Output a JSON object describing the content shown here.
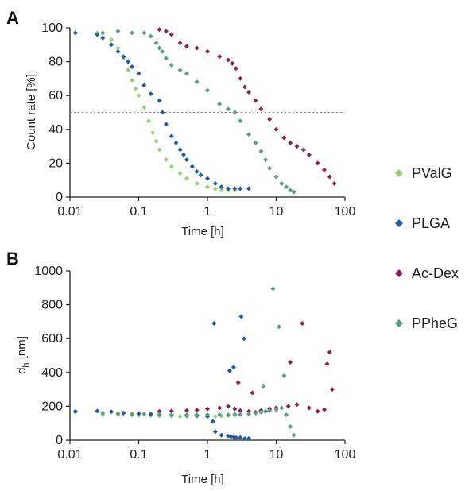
{
  "colors": {
    "PValG": "#99cf7c",
    "PLGA": "#1f5c9e",
    "Ac-Dex": "#8f1d58",
    "PPheG": "#5e9b89"
  },
  "legend": {
    "items": [
      {
        "label": "PValG",
        "color": "#99cf7c",
        "icon": "diamond-marker-icon"
      },
      {
        "label": "PLGA",
        "color": "#1f5c9e",
        "icon": "diamond-marker-icon"
      },
      {
        "label": "Ac-Dex",
        "color": "#8f1d58",
        "icon": "diamond-marker-icon"
      },
      {
        "label": "PPheG",
        "color": "#5e9b89",
        "icon": "diamond-marker-icon"
      }
    ]
  },
  "chart_data": [
    {
      "panel": "A",
      "type": "scatter",
      "xscale": "log",
      "xlim": [
        0.01,
        100
      ],
      "ylim": [
        0,
        100
      ],
      "xticks": [
        "0.01",
        "0.1",
        "1",
        "10",
        "100"
      ],
      "yticks": [
        "0",
        "20",
        "40",
        "60",
        "80",
        "100"
      ],
      "xlabel": "Time [h]",
      "ylabel": "Count rate [%]",
      "reference_line": {
        "y": 50,
        "style": "dotted"
      },
      "series": [
        {
          "name": "PValG",
          "x": [
            0.012,
            0.025,
            0.04,
            0.05,
            0.06,
            0.07,
            0.08,
            0.09,
            0.1,
            0.12,
            0.14,
            0.16,
            0.18,
            0.2,
            0.25,
            0.3,
            0.4,
            0.5,
            0.7,
            1.0,
            1.3,
            1.6,
            2.0,
            2.5
          ],
          "y": [
            97,
            97,
            93,
            88,
            82,
            75,
            69,
            64,
            60,
            53,
            45,
            38,
            33,
            28,
            22,
            18,
            14,
            11,
            8,
            6,
            5,
            4,
            4,
            4
          ]
        },
        {
          "name": "PLGA",
          "x": [
            0.012,
            0.025,
            0.03,
            0.04,
            0.05,
            0.06,
            0.07,
            0.08,
            0.1,
            0.12,
            0.15,
            0.2,
            0.22,
            0.25,
            0.3,
            0.35,
            0.4,
            0.45,
            0.5,
            0.6,
            0.7,
            0.8,
            1.0,
            1.3,
            1.6,
            2.0,
            2.5,
            3.0,
            4.0
          ],
          "y": [
            97,
            96,
            94,
            90,
            86,
            83,
            80,
            77,
            73,
            66,
            61,
            57,
            50,
            43,
            36,
            32,
            28,
            25,
            22,
            18,
            15,
            13,
            11,
            8,
            6,
            5,
            5,
            5,
            5
          ]
        },
        {
          "name": "Ac-Dex",
          "x": [
            0.2,
            0.25,
            0.3,
            0.4,
            0.5,
            0.7,
            1.0,
            1.5,
            2.0,
            2.3,
            2.6,
            3.0,
            3.5,
            4.0,
            5.0,
            6.0,
            8.0,
            10.0,
            13.0,
            16.0,
            20.0,
            25.0,
            30.0,
            40.0,
            50.0,
            60.0,
            70.0
          ],
          "y": [
            99,
            98,
            96,
            91,
            89,
            88,
            86,
            83,
            81,
            79,
            76,
            70,
            65,
            62,
            57,
            52,
            46,
            40,
            35,
            32,
            30,
            28,
            25,
            20,
            16,
            12,
            8
          ]
        },
        {
          "name": "PPheG",
          "x": [
            0.03,
            0.05,
            0.08,
            0.12,
            0.15,
            0.18,
            0.2,
            0.22,
            0.25,
            0.3,
            0.4,
            0.5,
            0.7,
            1.0,
            1.5,
            2.0,
            2.5,
            3.0,
            4.0,
            5.0,
            6.0,
            7.0,
            8.0,
            10.0,
            12.0,
            14.0,
            16.0,
            18.0
          ],
          "y": [
            97,
            98,
            97,
            97,
            95,
            91,
            88,
            86,
            82,
            78,
            75,
            73,
            68,
            63,
            55,
            52,
            50,
            45,
            37,
            32,
            27,
            22,
            17,
            12,
            8,
            6,
            4,
            3
          ]
        }
      ]
    },
    {
      "panel": "B",
      "type": "scatter",
      "xscale": "log",
      "xlim": [
        0.01,
        100
      ],
      "ylim": [
        0,
        1000
      ],
      "xticks": [
        "0.01",
        "0.1",
        "1",
        "10",
        "100"
      ],
      "yticks": [
        "0",
        "200",
        "400",
        "600",
        "800",
        "1000"
      ],
      "xlabel": "Time [h]",
      "ylabel_main": "d",
      "ylabel_sub": "h",
      "ylabel_unit": " [nm]",
      "series": [
        {
          "name": "PValG",
          "x": [
            0.012,
            0.03,
            0.05,
            0.08,
            0.1,
            0.15,
            0.2,
            0.3,
            0.4,
            0.5,
            0.7,
            1.0,
            1.3,
            1.6,
            2.0,
            2.5
          ],
          "y": [
            165,
            150,
            150,
            148,
            147,
            145,
            143,
            142,
            140,
            140,
            140,
            141,
            140,
            142,
            145,
            155
          ]
        },
        {
          "name": "PLGA",
          "x": [
            0.012,
            0.025,
            0.04,
            0.06,
            0.1,
            0.15,
            0.2,
            0.3,
            0.5,
            0.7,
            1.0,
            1.2,
            1.3,
            1.6,
            2.0,
            2.2,
            2.4,
            2.6,
            3.0,
            3.5,
            4.0,
            1.25,
            2.1,
            2.4,
            3.1,
            3.4
          ],
          "y": [
            170,
            172,
            168,
            160,
            158,
            155,
            152,
            150,
            148,
            146,
            140,
            110,
            50,
            30,
            25,
            20,
            20,
            15,
            15,
            10,
            10,
            690,
            410,
            430,
            730,
            600
          ]
        },
        {
          "name": "Ac-Dex",
          "x": [
            0.2,
            0.3,
            0.5,
            0.7,
            1.0,
            1.5,
            2.0,
            2.5,
            3.0,
            4.0,
            5.0,
            6.0,
            8.0,
            10.0,
            15.0,
            20.0,
            30.0,
            40.0,
            50.0,
            55.0,
            60.0,
            65.0,
            2.8,
            4.5,
            16.0,
            24.0
          ],
          "y": [
            170,
            172,
            175,
            178,
            185,
            190,
            200,
            185,
            175,
            170,
            165,
            175,
            185,
            190,
            200,
            210,
            190,
            170,
            180,
            450,
            520,
            300,
            340,
            280,
            460,
            690
          ]
        },
        {
          "name": "PPheG",
          "x": [
            0.03,
            0.05,
            0.08,
            0.12,
            0.2,
            0.3,
            0.5,
            0.7,
            1.0,
            1.5,
            2.0,
            2.5,
            3.0,
            4.0,
            5.0,
            6.0,
            7.0,
            8.0,
            10.0,
            12.0,
            14.0,
            16.0,
            18.0,
            9.0,
            11.0,
            13.0,
            6.5
          ],
          "y": [
            160,
            158,
            155,
            155,
            152,
            150,
            150,
            150,
            150,
            150,
            150,
            150,
            152,
            155,
            160,
            165,
            170,
            175,
            180,
            190,
            150,
            80,
            30,
            895,
            670,
            380,
            320
          ]
        }
      ]
    }
  ]
}
